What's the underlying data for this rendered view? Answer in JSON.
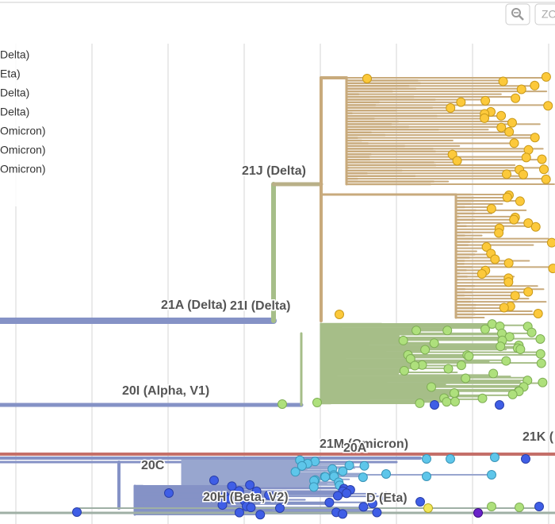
{
  "toolbar": {
    "zoom_button": "ZO"
  },
  "legend": {
    "items": [
      "Delta)",
      "Eta)",
      "Delta)",
      "Delta)",
      "Omicron)",
      "Omicron)",
      "Omicron)"
    ]
  },
  "clade_labels": [
    "21J (Delta)",
    "21A (Delta)",
    "21I (Delta)",
    "20I (Alpha, V1)",
    "21M (Omicron)",
    "20A",
    "21K (",
    "20C",
    "20H (Beta, V2)",
    "D (Eta)"
  ]
}
